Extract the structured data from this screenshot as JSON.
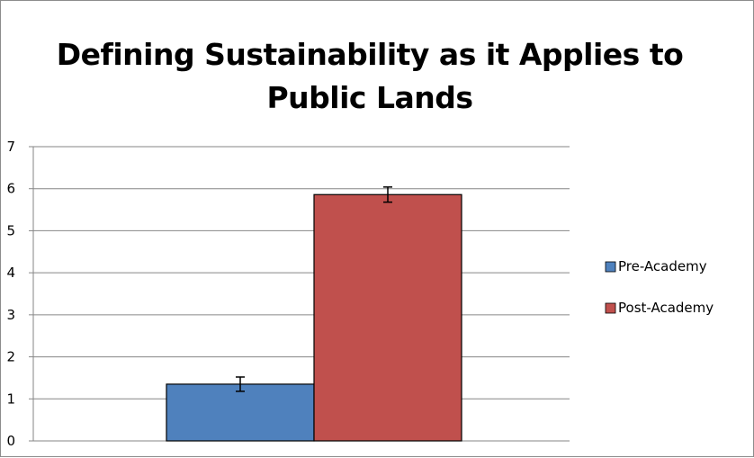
{
  "chart_data": {
    "type": "bar",
    "title": "Defining Sustainability as it Applies to Public Lands",
    "categories": [
      ""
    ],
    "series": [
      {
        "name": "Pre-Academy",
        "values": [
          1.35
        ],
        "error": [
          0.17
        ],
        "color": "#4f81bd"
      },
      {
        "name": "Post-Academy",
        "values": [
          5.86
        ],
        "error": [
          0.18
        ],
        "color": "#c0504d"
      }
    ],
    "ylim": [
      0,
      7
    ],
    "yticks": [
      "0",
      "1",
      "2",
      "3",
      "4",
      "5",
      "6",
      "7"
    ],
    "grid": true,
    "legend_position": "right",
    "xlabel": "",
    "ylabel": ""
  }
}
